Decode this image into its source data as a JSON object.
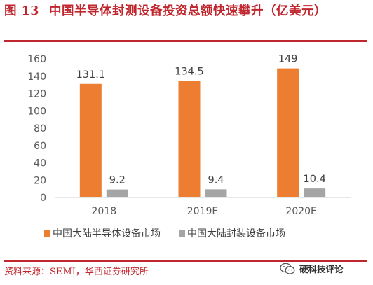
{
  "title": {
    "number": "图 13",
    "text": "中国半导体封测设备投资总额快速攀升（亿美元）"
  },
  "chart_data": {
    "type": "bar",
    "categories": [
      "2018",
      "2019E",
      "2020E"
    ],
    "series": [
      {
        "name": "中国大陆半导体设备市场",
        "values": [
          131.1,
          134.5,
          149
        ],
        "labels": [
          "131.1",
          "134.5",
          "149"
        ],
        "color": "#ed7d31"
      },
      {
        "name": "中国大陆封装设备市场",
        "values": [
          9.2,
          9.4,
          10.4
        ],
        "labels": [
          "9.2",
          "9.4",
          "10.4"
        ],
        "color": "#a5a5a5"
      }
    ],
    "y_ticks": [
      0,
      20,
      40,
      60,
      80,
      100,
      120,
      140,
      160
    ],
    "ylim": [
      0,
      160
    ],
    "grid": false,
    "legend_position": "bottom"
  },
  "source": "资料来源：SEMI，华西证券研究所",
  "watermark": {
    "text": "硬科技评论",
    "icon": "wechat-icon"
  },
  "colors": {
    "accent": "#c0262d",
    "axis": "#d9d9d9",
    "text": "#595959"
  }
}
